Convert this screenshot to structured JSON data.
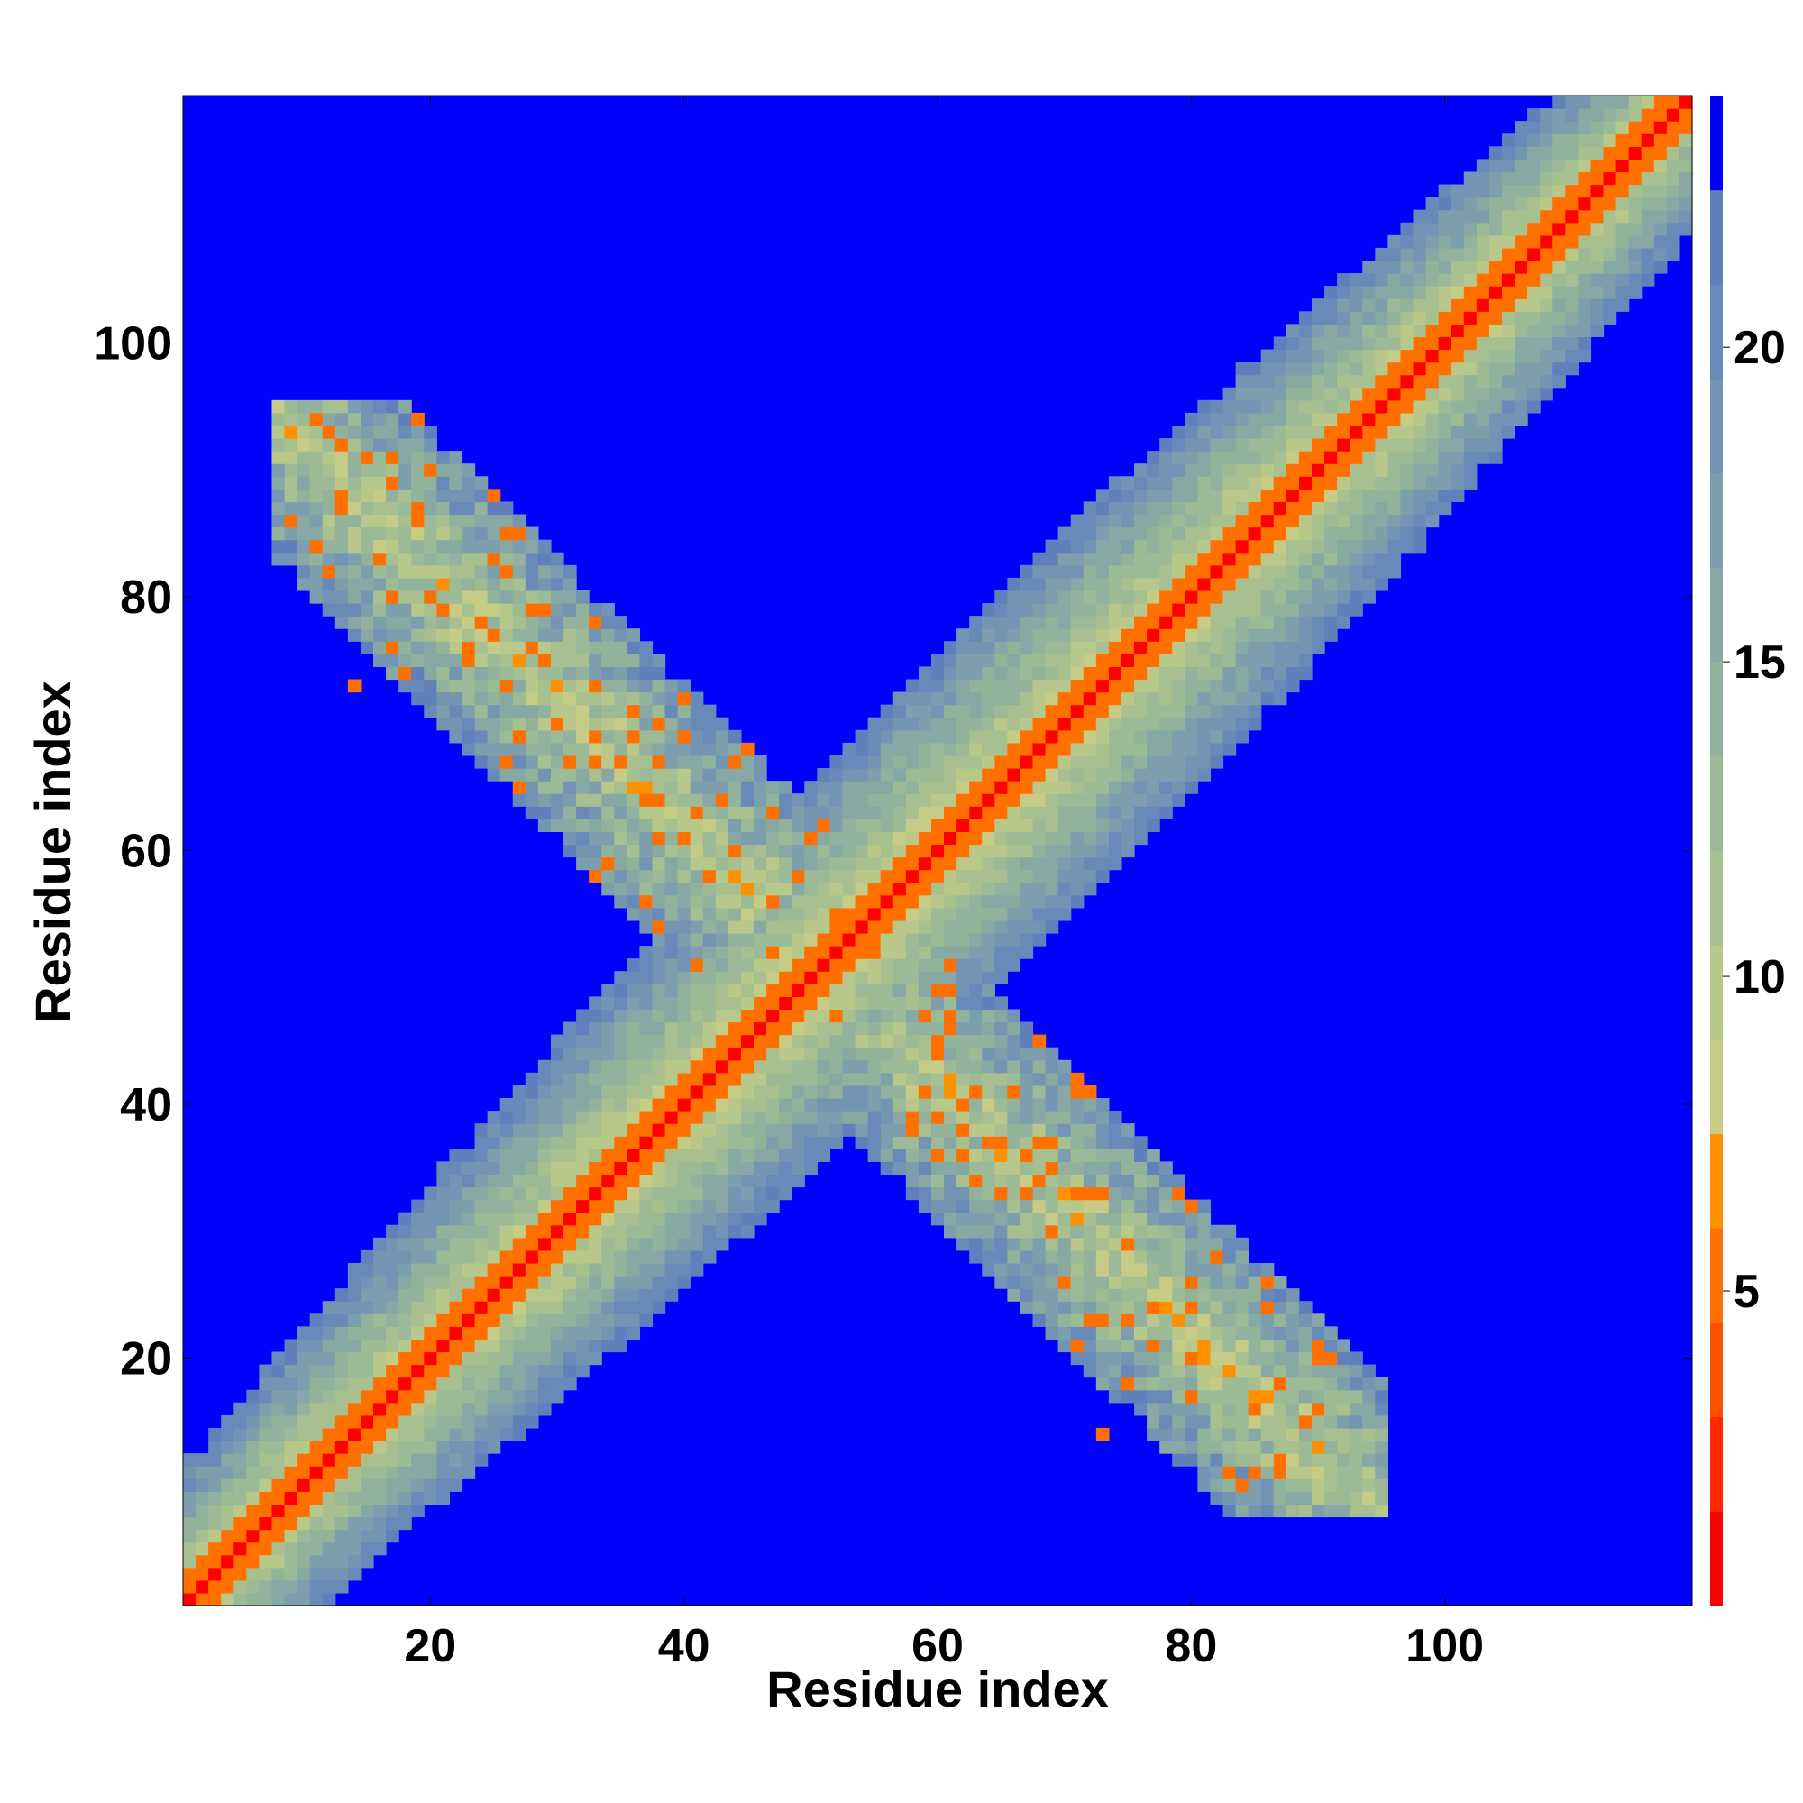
{
  "chart_data": {
    "type": "heatmap",
    "title": "",
    "xlabel": "Residue index",
    "ylabel": "Residue index",
    "n_residues": 119,
    "xlim": [
      0.5,
      119.5
    ],
    "ylim": [
      0.5,
      119.5
    ],
    "x_ticks": [
      20,
      40,
      60,
      80,
      100
    ],
    "y_ticks": [
      20,
      40,
      60,
      80,
      100
    ],
    "colorbar": {
      "ticks": [
        5,
        10,
        15,
        20
      ],
      "range": [
        0,
        24
      ],
      "levels": [
        {
          "max": 1.5,
          "color": "#ff0000"
        },
        {
          "max": 3.0,
          "color": "#ff2a00"
        },
        {
          "max": 4.5,
          "color": "#ff5000"
        },
        {
          "max": 6.0,
          "color": "#ff7000"
        },
        {
          "max": 7.5,
          "color": "#ff9000"
        },
        {
          "max": 9.0,
          "color": "#c6cc86"
        },
        {
          "max": 10.5,
          "color": "#b8c88a"
        },
        {
          "max": 12.0,
          "color": "#a8c090"
        },
        {
          "max": 13.5,
          "color": "#9cba96"
        },
        {
          "max": 15.0,
          "color": "#92b29c"
        },
        {
          "max": 16.5,
          "color": "#88a8a4"
        },
        {
          "max": 18.0,
          "color": "#7d9eac"
        },
        {
          "max": 19.5,
          "color": "#7394b2"
        },
        {
          "max": 21.0,
          "color": "#688ab8"
        },
        {
          "max": 22.5,
          "color": "#6080bc"
        },
        {
          "max": 24.0,
          "color": "#0000ff"
        }
      ]
    },
    "matrix_description": "Symmetric residue distance map; values shown are approximate estimates read from the color levels",
    "features": {
      "main_diagonal": {
        "value": 1.0,
        "near_diagonal": 6.0
      },
      "anti_diagonal_contacts": [
        {
          "i": 14,
          "j": 73,
          "value": 6.0
        },
        {
          "i": 17,
          "j": 80,
          "value": 5.5
        },
        {
          "i": 20,
          "j": 80,
          "value": 6.0
        },
        {
          "i": 23,
          "j": 75,
          "value": 5.5
        },
        {
          "i": 29,
          "j": 75,
          "value": 6.0
        },
        {
          "i": 33,
          "j": 67,
          "value": 5.0
        },
        {
          "i": 37,
          "j": 64,
          "value": 5.5
        },
        {
          "i": 41,
          "j": 63,
          "value": 6.0
        },
        {
          "i": 44,
          "j": 60,
          "value": 6.0
        },
        {
          "i": 47,
          "j": 52,
          "value": 5.0
        },
        {
          "i": 52,
          "j": 54,
          "value": 5.0
        },
        {
          "i": 55,
          "j": 52,
          "value": 5.0
        }
      ],
      "background_value": 24.0
    }
  }
}
